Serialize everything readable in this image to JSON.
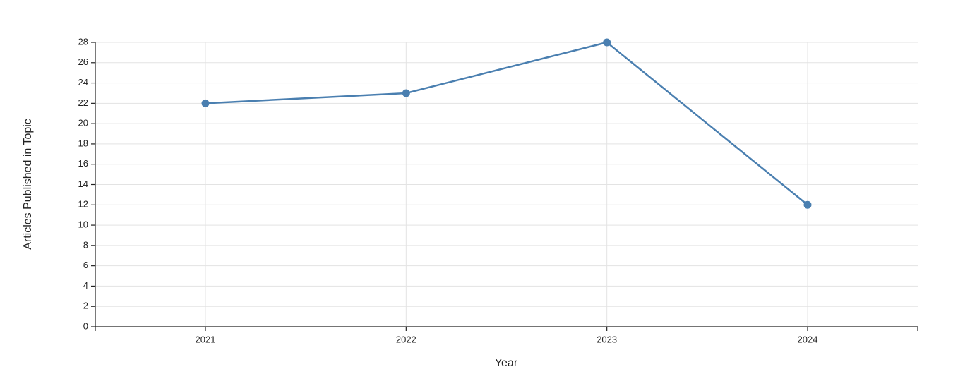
{
  "chart_data": {
    "type": "line",
    "x_label": "Year",
    "y_label": "Articles Published in Topic",
    "categories": [
      "2021",
      "2022",
      "2023",
      "2024"
    ],
    "values": [
      22,
      23,
      28,
      12
    ],
    "color": "#4a7fb0",
    "ylim": [
      0,
      28
    ],
    "yticks": [
      0,
      2,
      4,
      6,
      8,
      10,
      12,
      14,
      16,
      18,
      20,
      22,
      24,
      26,
      28
    ],
    "grid": true
  }
}
